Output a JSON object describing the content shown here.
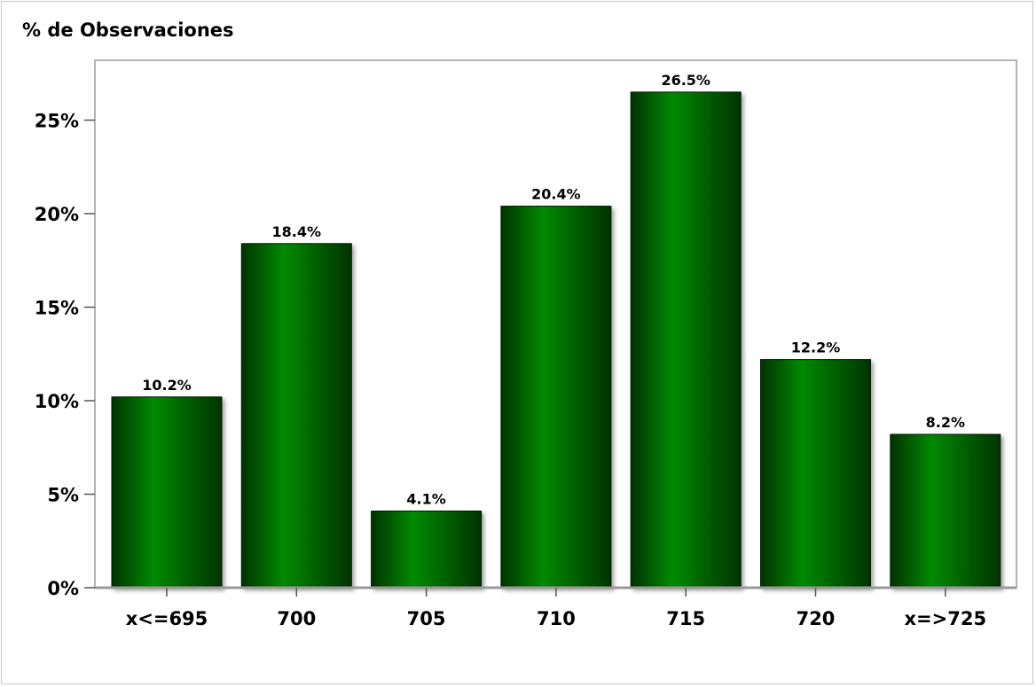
{
  "chart_data": {
    "type": "bar",
    "title": "",
    "ylabel": "% de Observaciones",
    "xlabel": "",
    "categories": [
      "x<=695",
      "700",
      "705",
      "710",
      "715",
      "720",
      "x=>725"
    ],
    "values": [
      10.2,
      18.4,
      4.1,
      20.4,
      26.5,
      12.2,
      8.2
    ],
    "value_labels": [
      "10.2%",
      "18.4%",
      "4.1%",
      "20.4%",
      "26.5%",
      "12.2%",
      "8.2%"
    ],
    "ylim": [
      0,
      28.2
    ],
    "yticks": [
      0,
      5,
      10,
      15,
      20,
      25
    ],
    "ytick_labels": [
      "0%",
      "5%",
      "10%",
      "15%",
      "20%",
      "25%"
    ],
    "grid": false,
    "bar_color_dark": "#003300",
    "bar_color_light": "#008a00"
  }
}
